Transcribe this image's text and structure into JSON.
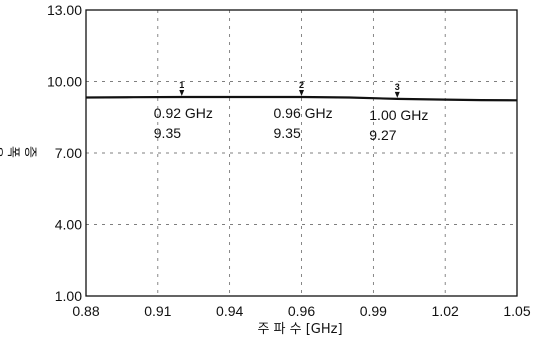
{
  "chart_data": {
    "type": "line",
    "xlabel": "주 파 수 [GHz]",
    "ylabel": "증 폭 율",
    "xlim": [
      0.88,
      1.05
    ],
    "ylim": [
      1.0,
      13.0
    ],
    "xticks": [
      0.88,
      0.91,
      0.94,
      0.96,
      0.99,
      1.02,
      1.05
    ],
    "xtick_labels": [
      "0.88",
      "0.91",
      "0.94",
      "0.96",
      "0.99",
      "1.02",
      "1.05"
    ],
    "yticks": [
      1.0,
      4.0,
      7.0,
      10.0,
      13.0
    ],
    "ytick_labels": [
      "1.00",
      "4.00",
      "7.00",
      "10.00",
      "13.00"
    ],
    "grid": true,
    "series": [
      {
        "x": [
          0.88,
          0.9,
          0.92,
          0.94,
          0.96,
          0.98,
          1.0,
          1.02,
          1.035,
          1.05
        ],
        "y": [
          9.33,
          9.34,
          9.35,
          9.35,
          9.35,
          9.33,
          9.27,
          9.24,
          9.22,
          9.21
        ]
      }
    ],
    "markers": [
      {
        "id": "1",
        "x": 0.92,
        "y": 9.35,
        "freq_label": "0.92 GHz",
        "value_label": "9.35"
      },
      {
        "id": "2",
        "x": 0.96,
        "y": 9.35,
        "freq_label": "0.96 GHz",
        "value_label": "9.35"
      },
      {
        "id": "3",
        "x": 1.0,
        "y": 9.27,
        "freq_label": "1.00 GHz",
        "value_label": "9.27"
      }
    ]
  }
}
